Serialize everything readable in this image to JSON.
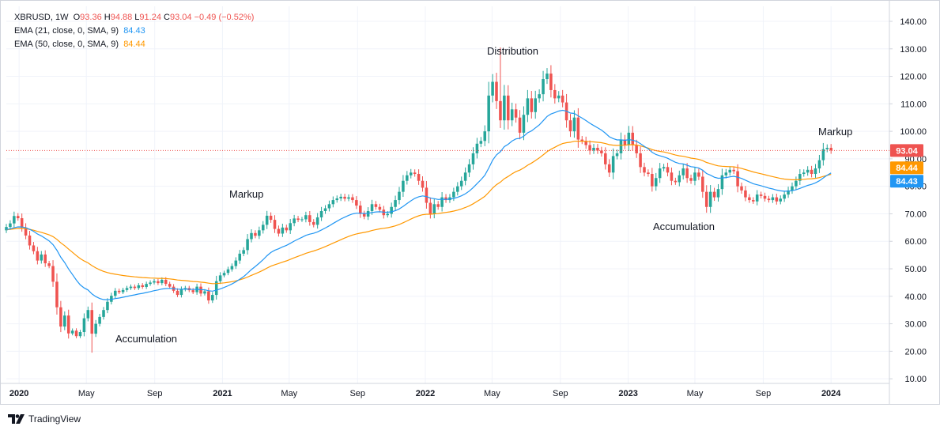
{
  "legend": {
    "symbol": "XBRUSD, 1W",
    "o_label": "O",
    "o_value": "93.36",
    "h_label": "H",
    "h_value": "94.88",
    "l_label": "L",
    "l_value": "91.24",
    "c_label": "C",
    "c_value": "93.04",
    "change": "−0.49 (−0.52%)",
    "ema21_label": "EMA (21, close, 0, SMA, 9)",
    "ema21_value": "84.43",
    "ema50_label": "EMA (50, close, 0, SMA, 9)",
    "ema50_value": "84.44"
  },
  "annotations": {
    "accumulation_1": "Accumulation",
    "markup_1": "Markup",
    "distribution": "Distribution",
    "accumulation_2": "Accumulation",
    "markup_2": "Markup"
  },
  "brand": {
    "name": "TradingView",
    "icon": "tradingview-logo-icon"
  },
  "colors": {
    "up": "#26a69a",
    "down": "#ef5350",
    "ema21": "#2196f3",
    "ema50": "#ff9800",
    "grid": "#f0f3fa",
    "axis": "#d1d4dc",
    "price_line": "#ef5350"
  },
  "chart_data": {
    "type": "candlestick",
    "symbol": "XBRUSD",
    "interval": "1W",
    "price_axis": {
      "range": [
        10,
        140
      ],
      "ticks": [
        "140.00",
        "130.00",
        "120.00",
        "110.00",
        "100.00",
        "90.00",
        "80.00",
        "70.00",
        "60.00",
        "50.00",
        "40.00",
        "30.00",
        "20.00",
        "10.00"
      ]
    },
    "time_axis": {
      "range": [
        "2019-12-09",
        "2024-04-15"
      ],
      "ticks": [
        {
          "label": "2020",
          "date": "2020-01-01",
          "bold": true
        },
        {
          "label": "May",
          "date": "2020-05-01",
          "bold": false
        },
        {
          "label": "Sep",
          "date": "2020-09-01",
          "bold": false
        },
        {
          "label": "2021",
          "date": "2021-01-01",
          "bold": true
        },
        {
          "label": "May",
          "date": "2021-05-01",
          "bold": false
        },
        {
          "label": "Sep",
          "date": "2021-09-01",
          "bold": false
        },
        {
          "label": "2022",
          "date": "2022-01-01",
          "bold": true
        },
        {
          "label": "May",
          "date": "2022-05-01",
          "bold": false
        },
        {
          "label": "Sep",
          "date": "2022-09-01",
          "bold": false
        },
        {
          "label": "2023",
          "date": "2023-01-01",
          "bold": true
        },
        {
          "label": "May",
          "date": "2023-05-01",
          "bold": false
        },
        {
          "label": "Sep",
          "date": "2023-09-01",
          "bold": false
        },
        {
          "label": "2024",
          "date": "2024-01-01",
          "bold": true
        }
      ]
    },
    "first_week": "2019-12-09",
    "closes": [
      65.2,
      66.5,
      69.2,
      68.4,
      65.0,
      62.1,
      58.5,
      56.4,
      53.0,
      55.2,
      52.0,
      51.0,
      45.3,
      36.0,
      29.0,
      33.0,
      26.5,
      27.5,
      25.5,
      27.0,
      32.0,
      35.0,
      26.4,
      30.0,
      32.5,
      35.0,
      38.0,
      40.2,
      42.0,
      41.5,
      42.3,
      43.0,
      43.5,
      43.0,
      44.0,
      43.4,
      44.5,
      45.0,
      45.5,
      44.8,
      46.0,
      44.5,
      43.5,
      42.0,
      40.5,
      42.5,
      43.0,
      42.2,
      41.5,
      43.5,
      41.0,
      41.8,
      38.5,
      40.5,
      45.5,
      47.6,
      48.5,
      49.8,
      51.0,
      53.0,
      55.5,
      56.8,
      60.8,
      63.0,
      62.0,
      64.0,
      66.0,
      69.3,
      67.8,
      64.5,
      62.8,
      65.0,
      64.0,
      66.6,
      68.3,
      67.8,
      68.0,
      69.5,
      67.0,
      66.0,
      68.7,
      71.0,
      72.0,
      73.5,
      75.0,
      75.6,
      76.2,
      75.5,
      76.0,
      75.0,
      73.0,
      70.0,
      69.0,
      71.0,
      73.5,
      72.5,
      71.5,
      69.5,
      70.0,
      72.5,
      75.0,
      78.0,
      82.0,
      84.0,
      85.0,
      84.5,
      82.0,
      79.5,
      74.0,
      70.0,
      73.5,
      72.5,
      76.0,
      75.0,
      76.0,
      78.0,
      80.0,
      82.0,
      85.0,
      88.0,
      92.0,
      95.5,
      96.5,
      100.0,
      113.0,
      118.0,
      111.0,
      104.0,
      113.0,
      104.0,
      108.0,
      105.0,
      99.5,
      106.0,
      112.0,
      107.0,
      112.0,
      113.5,
      119.0,
      121.0,
      115.0,
      112.0,
      113.0,
      110.5,
      104.0,
      100.0,
      105.0,
      97.0,
      96.5,
      95.0,
      93.0,
      94.0,
      93.0,
      92.0,
      88.0,
      85.0,
      91.0,
      92.0,
      97.0,
      95.0,
      99.5,
      95.0,
      92.0,
      87.0,
      85.0,
      84.5,
      80.0,
      83.0,
      86.5,
      87.0,
      85.0,
      82.0,
      81.5,
      84.0,
      86.5,
      83.0,
      82.0,
      85.0,
      83.5,
      78.0,
      72.5,
      78.0,
      76.0,
      79.0,
      84.0,
      85.0,
      86.0,
      85.5,
      80.0,
      78.5,
      76.0,
      75.0,
      74.5,
      77.0,
      76.5,
      75.5,
      75.0,
      76.0,
      74.5,
      75.5,
      77.0,
      78.5,
      80.0,
      82.0,
      84.5,
      85.0,
      86.0,
      84.5,
      86.5,
      89.5,
      93.5,
      94.0,
      93.04
    ],
    "series": [
      {
        "name": "EMA (21, close, 0, SMA, 9)",
        "last": 84.43,
        "color": "#2196f3"
      },
      {
        "name": "EMA (50, close, 0, SMA, 9)",
        "last": 84.44,
        "color": "#ff9800"
      }
    ],
    "last_price": 93.04,
    "price_tags": [
      {
        "value": 93.04,
        "label": "93.04",
        "color": "#ef5350"
      },
      {
        "value": 84.44,
        "label": "84.44",
        "color": "#ff9800"
      },
      {
        "value": 84.43,
        "label": "84.43",
        "color": "#2196f3"
      }
    ],
    "grid": true
  }
}
